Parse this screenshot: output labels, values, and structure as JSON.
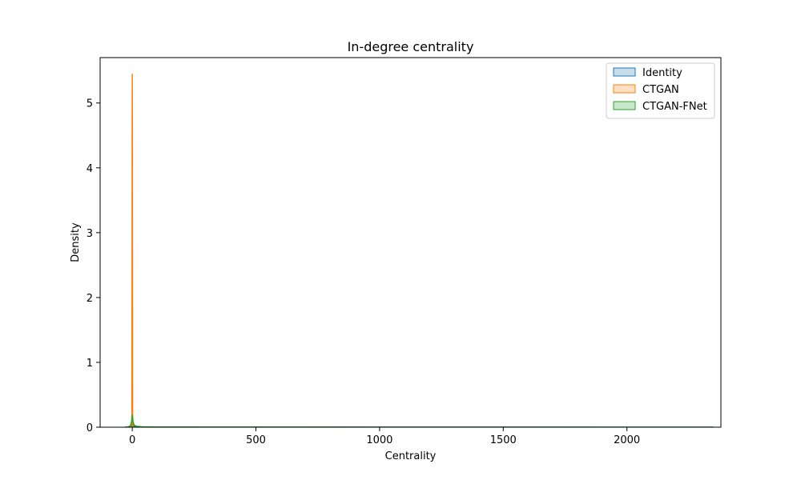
{
  "chart_data": {
    "type": "area",
    "title": "In-degree centrality",
    "xlabel": "Centrality",
    "ylabel": "Density",
    "xlim": [
      -130,
      2380
    ],
    "ylim": [
      0,
      5.7
    ],
    "xticks": [
      0,
      500,
      1000,
      1500,
      2000
    ],
    "yticks": [
      0,
      1,
      2,
      3,
      4,
      5
    ],
    "grid": false,
    "legend_position": "top-right",
    "series": [
      {
        "name": "Identity",
        "color": "#1f77b4",
        "x": [
          -30,
          -10,
          -3,
          0,
          3,
          10,
          30,
          100,
          500,
          1000,
          1500,
          2000,
          2350
        ],
        "y": [
          0,
          0.008,
          0.02,
          0.025,
          0.02,
          0.008,
          0.003,
          0.002,
          0.001,
          0.001,
          0.001,
          0.0005,
          0.0003
        ]
      },
      {
        "name": "CTGAN",
        "color": "#ff7f0e",
        "x": [
          -3,
          -1.5,
          -0.5,
          0,
          0.5,
          1.5,
          3
        ],
        "y": [
          0,
          0.2,
          4.5,
          5.45,
          4.5,
          0.2,
          0
        ]
      },
      {
        "name": "CTGAN-FNet",
        "color": "#2ca02c",
        "x": [
          -20,
          -8,
          -3,
          0,
          3,
          8,
          20,
          40,
          100,
          500,
          1000,
          1500,
          2000,
          2350
        ],
        "y": [
          0,
          0.02,
          0.08,
          0.19,
          0.08,
          0.03,
          0.012,
          0.006,
          0.003,
          0.001,
          0.0008,
          0.0005,
          0.0003,
          0.0002
        ]
      }
    ]
  }
}
